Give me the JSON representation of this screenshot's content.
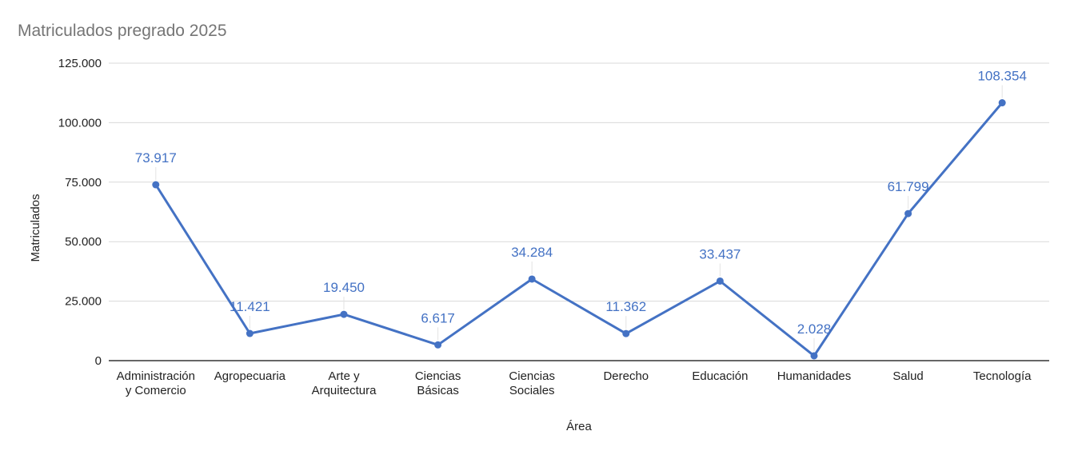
{
  "chart_data": {
    "type": "line",
    "title": "Matriculados pregrado 2025",
    "xlabel": "Área",
    "ylabel": "Matriculados",
    "categories": [
      [
        "Administración",
        "y Comercio"
      ],
      [
        "Agropecuaria"
      ],
      [
        "Arte y",
        "Arquitectura"
      ],
      [
        "Ciencias",
        "Básicas"
      ],
      [
        "Ciencias",
        "Sociales"
      ],
      [
        "Derecho"
      ],
      [
        "Educación"
      ],
      [
        "Humanidades"
      ],
      [
        "Salud"
      ],
      [
        "Tecnología"
      ]
    ],
    "series": [
      {
        "values": [
          73917,
          11421,
          19450,
          6617,
          34284,
          11362,
          33437,
          2028,
          61799,
          108354
        ],
        "labels": [
          "73.917",
          "11.421",
          "19.450",
          "6.617",
          "34.284",
          "11.362",
          "33.437",
          "2.028",
          "61.799",
          "108.354"
        ],
        "color": "#4472c4"
      }
    ],
    "yticks": [
      0,
      25000,
      50000,
      75000,
      100000,
      125000
    ],
    "ytick_labels": [
      "0",
      "25.000",
      "50.000",
      "75.000",
      "100.000",
      "125.000"
    ],
    "ylim": [
      0,
      125000
    ],
    "grid": true,
    "legend": "none"
  },
  "colors": {
    "series": "#4472c4",
    "grid": "#d9d9d9",
    "axis": "#333333",
    "title": "#757575",
    "text": "#222222"
  }
}
